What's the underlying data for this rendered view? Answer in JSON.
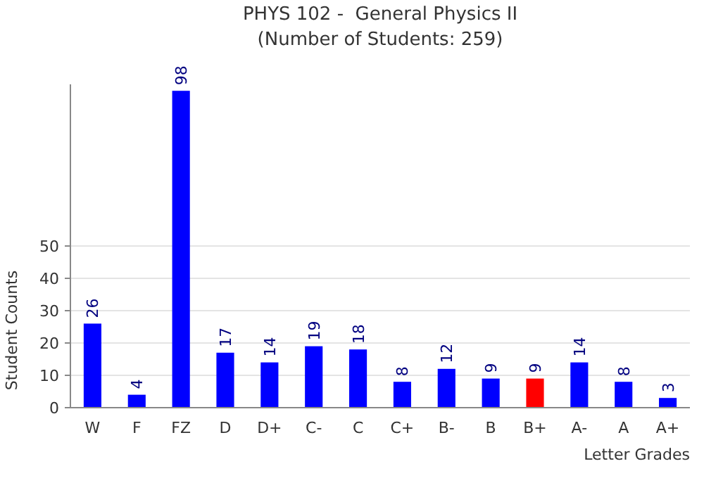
{
  "chart_data": {
    "type": "bar",
    "title": "PHYS 102 -  General Physics II",
    "subtitle": "(Number of Students: 259)",
    "xlabel": "Letter Grades",
    "ylabel": "Student Counts",
    "categories": [
      "W",
      "F",
      "FZ",
      "D",
      "D+",
      "C-",
      "C",
      "C+",
      "B-",
      "B",
      "B+",
      "A-",
      "A",
      "A+"
    ],
    "values": [
      26,
      4,
      98,
      17,
      14,
      19,
      18,
      8,
      12,
      9,
      9,
      14,
      8,
      3
    ],
    "colors": [
      "#0000ff",
      "#0000ff",
      "#0000ff",
      "#0000ff",
      "#0000ff",
      "#0000ff",
      "#0000ff",
      "#0000ff",
      "#0000ff",
      "#0000ff",
      "#ff0000",
      "#0000ff",
      "#0000ff",
      "#0000ff"
    ],
    "ylim": [
      0,
      100
    ],
    "yticks": [
      0,
      10,
      20,
      30,
      40,
      50
    ],
    "grid": "y",
    "data_labels": true
  }
}
